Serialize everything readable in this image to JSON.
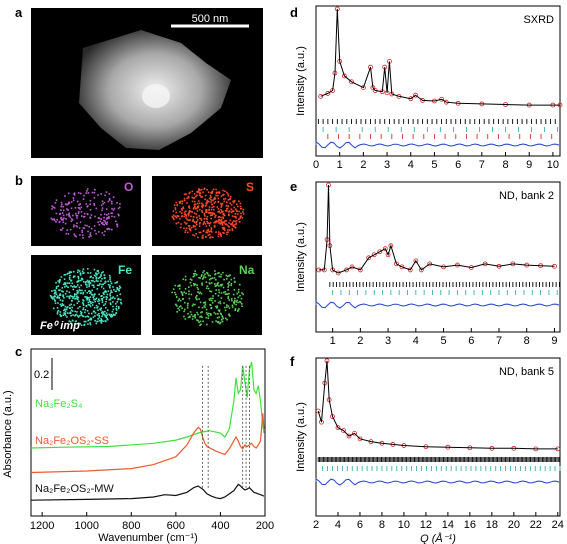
{
  "figure": {
    "panels": {
      "a": {
        "label": "a",
        "scale_bar": "500 nm"
      },
      "b": {
        "label": "b",
        "maps": [
          {
            "element": "O",
            "color": "#c05bd8"
          },
          {
            "element": "S",
            "color": "#ff4a2a"
          },
          {
            "element": "Fe",
            "color": "#49e6c3",
            "annotation": "Fe⁰ imp"
          },
          {
            "element": "Na",
            "color": "#5bd15a"
          }
        ]
      },
      "c": {
        "label": "c",
        "xlabel": "Wavenumber (cm⁻¹)",
        "ylabel": "Absorbance (a.u.)",
        "scale_label": "0.2"
      },
      "d": {
        "label": "d",
        "tag": "SXRD",
        "ylabel": "Intensity (a.u.)"
      },
      "e": {
        "label": "e",
        "tag": "ND, bank 2",
        "ylabel": "Intensity (a.u.)"
      },
      "f": {
        "label": "f",
        "tag": "ND, bank 5",
        "ylabel": "Intensity (a.u.)",
        "xlabel": "Q (Å⁻¹)"
      }
    }
  },
  "chart_data": [
    {
      "type": "line",
      "panel": "c",
      "xlabel": "Wavenumber (cm⁻¹)",
      "ylabel": "Absorbance (a.u.)",
      "xlim": [
        1250,
        200
      ],
      "x_ticks": [
        "1200",
        "1000",
        "800",
        "600",
        "400",
        "200"
      ],
      "series": [
        {
          "name": "Na₃Fe₂S₄",
          "color": "#3de33d",
          "x": [
            1250,
            1100,
            900,
            700,
            600,
            550,
            500,
            450,
            400,
            380,
            360,
            340,
            330,
            320,
            310,
            300,
            290,
            280,
            270,
            260,
            250,
            240,
            230,
            220,
            210,
            205
          ],
          "y": [
            0.86,
            0.87,
            0.88,
            0.92,
            0.96,
            1.0,
            1.05,
            1.08,
            1.05,
            1.0,
            1.1,
            1.45,
            1.75,
            1.55,
            1.6,
            1.9,
            1.7,
            1.5,
            1.85,
            1.95,
            1.6,
            1.55,
            1.65,
            1.45,
            1.15,
            1.05
          ]
        },
        {
          "name": "Na₂Fe₂OS₂-SS",
          "color": "#ef5a2a",
          "x": [
            1250,
            1000,
            800,
            700,
            600,
            550,
            520,
            500,
            490,
            480,
            470,
            460,
            440,
            420,
            400,
            380,
            360,
            340,
            330,
            320,
            310,
            300,
            290,
            280,
            270,
            260,
            250,
            240,
            230,
            220,
            210,
            205
          ],
          "y": [
            0.55,
            0.57,
            0.6,
            0.65,
            0.75,
            0.9,
            1.05,
            1.12,
            1.1,
            1.0,
            0.92,
            0.88,
            0.85,
            0.82,
            0.8,
            0.78,
            0.85,
            0.95,
            1.0,
            0.95,
            0.88,
            0.85,
            0.9,
            0.88,
            0.9,
            0.92,
            0.88,
            0.86,
            0.9,
            0.95,
            1.3,
            1.1
          ]
        },
        {
          "name": "Na₂Fe₂OS₂-MW",
          "color": "#111111",
          "x": [
            1250,
            1000,
            800,
            700,
            650,
            600,
            550,
            520,
            500,
            480,
            460,
            440,
            420,
            400,
            380,
            360,
            340,
            330,
            320,
            310,
            300,
            290,
            280,
            270,
            260,
            250,
            240,
            230,
            220,
            210,
            205
          ],
          "y": [
            0.2,
            0.21,
            0.22,
            0.24,
            0.27,
            0.26,
            0.3,
            0.36,
            0.38,
            0.34,
            0.28,
            0.25,
            0.23,
            0.22,
            0.24,
            0.28,
            0.32,
            0.36,
            0.4,
            0.38,
            0.35,
            0.33,
            0.34,
            0.36,
            0.33,
            0.3,
            0.29,
            0.28,
            0.27,
            0.26,
            0.25
          ]
        }
      ]
    },
    {
      "type": "line",
      "panel": "d",
      "xlabel": "",
      "ylabel": "Intensity (a.u.)",
      "xlim": [
        0,
        10.3
      ],
      "x_ticks": [
        "0",
        "1",
        "2",
        "3",
        "4",
        "5",
        "6",
        "7",
        "8",
        "9",
        "10"
      ],
      "series": [
        {
          "name": "",
          "color": "#d92020",
          "x": [
            0.2,
            0.5,
            0.7,
            0.8,
            0.9,
            1.0,
            1.2,
            1.5,
            2.0,
            2.3,
            2.4,
            2.5,
            2.8,
            2.9,
            3.0,
            3.1,
            3.2,
            3.5,
            4.0,
            4.2,
            4.5,
            5.0,
            5.3,
            5.5,
            6.0,
            7.0,
            8.0,
            9.0,
            10.0,
            10.3
          ],
          "y": [
            0.7,
            0.75,
            0.8,
            1.1,
            2.2,
            1.3,
            1.05,
            0.95,
            0.85,
            1.2,
            0.85,
            0.8,
            0.78,
            1.2,
            0.76,
            1.3,
            0.74,
            0.7,
            0.66,
            0.72,
            0.63,
            0.62,
            0.65,
            0.6,
            0.58,
            0.57,
            0.56,
            0.55,
            0.55,
            0.55
          ]
        }
      ]
    },
    {
      "type": "line",
      "panel": "e",
      "xlabel": "",
      "ylabel": "Intensity (a.u.)",
      "xlim": [
        0.4,
        9.2
      ],
      "x_ticks": [
        "1",
        "2",
        "3",
        "4",
        "5",
        "6",
        "7",
        "8",
        "9"
      ],
      "series": [
        {
          "name": "",
          "color": "#d92020",
          "x": [
            0.5,
            0.7,
            0.8,
            0.85,
            0.9,
            1.0,
            1.2,
            1.5,
            1.7,
            2.0,
            2.3,
            2.5,
            2.7,
            2.9,
            3.0,
            3.1,
            3.3,
            3.5,
            3.8,
            4.0,
            4.2,
            4.5,
            5.0,
            5.5,
            6.0,
            6.5,
            7.0,
            7.5,
            8.0,
            8.5,
            9.0
          ],
          "y": [
            1.0,
            1.0,
            1.5,
            2.4,
            1.4,
            1.0,
            0.95,
            1.0,
            1.05,
            1.0,
            1.2,
            1.25,
            1.3,
            1.35,
            1.25,
            1.4,
            1.1,
            1.05,
            1.0,
            1.15,
            1.0,
            1.1,
            1.05,
            1.08,
            1.04,
            1.1,
            1.06,
            1.1,
            1.08,
            1.07,
            1.06
          ]
        }
      ]
    },
    {
      "type": "line",
      "panel": "f",
      "xlabel": "Q (Å⁻¹)",
      "ylabel": "Intensity (a.u.)",
      "xlim": [
        2,
        24.2
      ],
      "x_ticks": [
        "2",
        "4",
        "6",
        "8",
        "10",
        "12",
        "14",
        "16",
        "18",
        "20",
        "22",
        "24"
      ],
      "series": [
        {
          "name": "",
          "color": "#d92020",
          "x": [
            2.2,
            2.5,
            2.8,
            3.0,
            3.2,
            3.5,
            4.0,
            4.5,
            5.0,
            5.5,
            6.0,
            7.0,
            8.0,
            9.0,
            10.0,
            12.0,
            14.0,
            16.0,
            18.0,
            20.0,
            22.0,
            24.0
          ],
          "y": [
            1.7,
            1.5,
            2.2,
            2.6,
            1.9,
            1.6,
            1.4,
            1.35,
            1.25,
            1.3,
            1.2,
            1.15,
            1.12,
            1.1,
            1.08,
            1.06,
            1.05,
            1.04,
            1.03,
            1.03,
            1.02,
            1.02
          ]
        }
      ]
    }
  ]
}
